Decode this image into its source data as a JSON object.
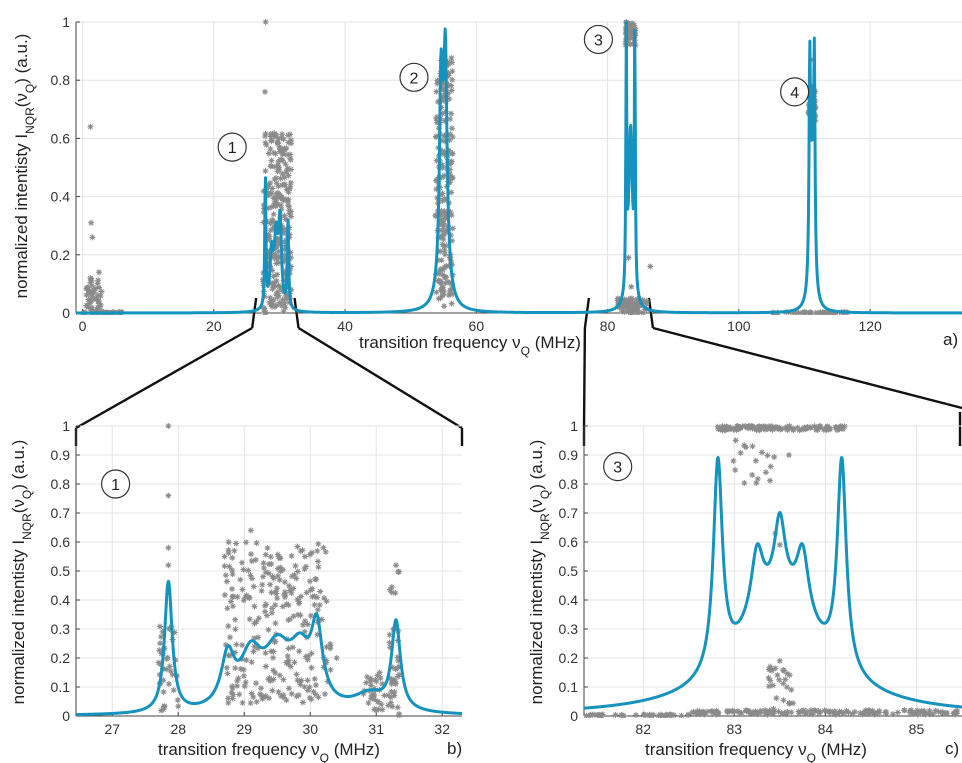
{
  "chart_data": [
    {
      "id": "a",
      "type": "line",
      "panel_label": "a)",
      "xlabel": "transition frequency ν",
      "xlabel_sub": "Q",
      "xlabel_unit": " (MHz)",
      "ylabel": "normalized intentisty I",
      "ylabel_sub1": "NQR",
      "ylabel_mid": "(ν",
      "ylabel_sub2": "Q",
      "ylabel_end": ") (a.u.)",
      "xlim": [
        -1,
        134
      ],
      "ylim": [
        0,
        1
      ],
      "xticks": [
        0,
        20,
        40,
        60,
        80,
        100,
        120
      ],
      "yticks": [
        0,
        0.2,
        0.4,
        0.6,
        0.8,
        1
      ],
      "ytick_labels": [
        "0",
        "0.2",
        "0.4",
        "0.6",
        "0.8",
        "1"
      ],
      "grid": true,
      "series": [
        {
          "kind": "curve",
          "peaks": [
            {
              "x": 27.85,
              "a": 0.46,
              "w": 0.1
            },
            {
              "x": 28.8,
              "a": 0.18,
              "w": 0.3
            },
            {
              "x": 29.5,
              "a": 0.24,
              "w": 0.35
            },
            {
              "x": 30.1,
              "a": 0.28,
              "w": 0.25
            },
            {
              "x": 31.3,
              "a": 0.31,
              "w": 0.12
            },
            {
              "x": 54.6,
              "a": 0.55,
              "w": 0.25
            },
            {
              "x": 55.3,
              "a": 0.52,
              "w": 0.25
            },
            {
              "x": 55.05,
              "a": 0.45,
              "w": 0.6
            },
            {
              "x": 82.85,
              "a": 0.9,
              "w": 0.08
            },
            {
              "x": 84.15,
              "a": 0.9,
              "w": 0.08
            },
            {
              "x": 83.5,
              "a": 0.62,
              "w": 0.35
            },
            {
              "x": 110.8,
              "a": 0.7,
              "w": 0.12
            },
            {
              "x": 111.5,
              "a": 0.7,
              "w": 0.12
            },
            {
              "x": 111.15,
              "a": 0.45,
              "w": 0.35
            }
          ]
        },
        {
          "kind": "scatter",
          "clusters": [
            {
              "x0": 0.5,
              "x1": 3,
              "y0": 0,
              "y1": 0.12,
              "n": 50
            },
            {
              "x0": 27.5,
              "x1": 31.8,
              "y0": 0,
              "y1": 0.62,
              "n": 260
            },
            {
              "x0": 53.8,
              "x1": 56.4,
              "y0": 0.02,
              "y1": 0.88,
              "n": 220
            },
            {
              "x0": 82.7,
              "x1": 84.3,
              "y0": 0.92,
              "y1": 1.0,
              "n": 60
            },
            {
              "x0": 81.5,
              "x1": 86,
              "y0": 0,
              "y1": 0.05,
              "n": 80
            },
            {
              "x0": 110.6,
              "x1": 111.7,
              "y0": 0.66,
              "y1": 0.78,
              "n": 60
            },
            {
              "x0": 0,
              "x1": 6,
              "y0": 0,
              "y1": 0.003,
              "n": 30
            },
            {
              "x0": 105,
              "x1": 117,
              "y0": 0,
              "y1": 0.003,
              "n": 40
            }
          ],
          "points": [
            {
              "x": 27.9,
              "y": 1.0
            },
            {
              "x": 27.8,
              "y": 0.76
            },
            {
              "x": 1.2,
              "y": 0.64
            },
            {
              "x": 1.3,
              "y": 0.31
            },
            {
              "x": 1.5,
              "y": 0.26
            },
            {
              "x": 2.5,
              "y": 0.14
            },
            {
              "x": 111.3,
              "y": 0.87
            },
            {
              "x": 83.2,
              "y": 0.19
            },
            {
              "x": 86.5,
              "y": 0.16
            },
            {
              "x": 83.6,
              "y": 0.09
            }
          ]
        }
      ],
      "annotations": [
        {
          "text": "1",
          "x": 22.8,
          "y": 0.57
        },
        {
          "text": "2",
          "x": 50.5,
          "y": 0.81
        },
        {
          "text": "3",
          "x": 78.6,
          "y": 0.94
        },
        {
          "text": "4",
          "x": 108.5,
          "y": 0.76
        }
      ]
    },
    {
      "id": "b",
      "type": "line",
      "panel_label": "b)",
      "xlabel": "transition frequency ν",
      "xlabel_sub": "Q",
      "xlabel_unit": " (MHz)",
      "ylabel": "normalized intentisty I",
      "ylabel_sub1": "NQR",
      "ylabel_mid": "(ν",
      "ylabel_sub2": "Q",
      "ylabel_end": ") (a.u.)",
      "xlim": [
        26.45,
        32.3
      ],
      "ylim": [
        0,
        1
      ],
      "xticks": [
        27,
        28,
        29,
        30,
        31,
        32
      ],
      "yticks": [
        0,
        0.1,
        0.2,
        0.3,
        0.4,
        0.5,
        0.6,
        0.7,
        0.8,
        0.9,
        1
      ],
      "ytick_labels": [
        "0",
        "0.1",
        "0.2",
        "0.3",
        "0.4",
        "0.5",
        "0.6",
        "0.7",
        "0.8",
        "0.9",
        "1"
      ],
      "grid": true,
      "series": [
        {
          "kind": "curve",
          "peaks": [
            {
              "x": 27.85,
              "a": 0.45,
              "w": 0.07
            },
            {
              "x": 28.75,
              "a": 0.17,
              "w": 0.12
            },
            {
              "x": 29.1,
              "a": 0.17,
              "w": 0.2
            },
            {
              "x": 29.5,
              "a": 0.19,
              "w": 0.25
            },
            {
              "x": 29.85,
              "a": 0.17,
              "w": 0.2
            },
            {
              "x": 30.1,
              "a": 0.24,
              "w": 0.1
            },
            {
              "x": 30.9,
              "a": 0.06,
              "w": 0.3
            },
            {
              "x": 31.3,
              "a": 0.3,
              "w": 0.08
            }
          ]
        },
        {
          "kind": "scatter",
          "clusters": [
            {
              "x0": 27.7,
              "x1": 28.0,
              "y0": 0.01,
              "y1": 0.32,
              "n": 40
            },
            {
              "x0": 28.7,
              "x1": 30.25,
              "y0": 0.04,
              "y1": 0.6,
              "n": 260
            },
            {
              "x0": 30.2,
              "x1": 30.35,
              "y0": 0.1,
              "y1": 0.25,
              "n": 8
            },
            {
              "x0": 30.8,
              "x1": 31.3,
              "y0": 0.02,
              "y1": 0.15,
              "n": 40
            },
            {
              "x0": 31.2,
              "x1": 31.35,
              "y0": 0.0,
              "y1": 0.5,
              "n": 30
            }
          ],
          "points": [
            {
              "x": 27.85,
              "y": 1.0
            },
            {
              "x": 27.85,
              "y": 0.76
            },
            {
              "x": 27.85,
              "y": 0.58
            },
            {
              "x": 27.85,
              "y": 0.52
            },
            {
              "x": 27.85,
              "y": 0.44
            },
            {
              "x": 29.1,
              "y": 0.64
            },
            {
              "x": 30.2,
              "y": 0.58
            },
            {
              "x": 31.3,
              "y": 0.52
            },
            {
              "x": 30.4,
              "y": 0.2
            },
            {
              "x": 28.85,
              "y": 0.57
            }
          ]
        }
      ],
      "annotations": [
        {
          "text": "1",
          "x": 27.05,
          "y": 0.8
        }
      ]
    },
    {
      "id": "c",
      "type": "line",
      "panel_label": "c)",
      "xlabel": "transition frequency ν",
      "xlabel_sub": "Q",
      "xlabel_unit": " (MHz)",
      "ylabel": "normalized intentisty I",
      "ylabel_sub1": "NQR",
      "ylabel_mid": "(ν",
      "ylabel_sub2": "Q",
      "ylabel_end": ") (a.u.)",
      "xlim": [
        81.35,
        85.5
      ],
      "ylim": [
        0,
        1
      ],
      "xticks": [
        82,
        83,
        84,
        85
      ],
      "yticks": [
        0,
        0.1,
        0.2,
        0.3,
        0.4,
        0.5,
        0.6,
        0.7,
        0.8,
        0.9,
        1
      ],
      "ytick_labels": [
        "0",
        "0.1",
        "0.2",
        "0.3",
        "0.4",
        "0.5",
        "0.6",
        "0.7",
        "0.8",
        "0.9",
        "1"
      ],
      "grid": true,
      "series": [
        {
          "kind": "curve",
          "peaks": [
            {
              "x": 82.82,
              "a": 0.72,
              "w": 0.06
            },
            {
              "x": 84.18,
              "a": 0.72,
              "w": 0.06
            },
            {
              "x": 83.25,
              "a": 0.22,
              "w": 0.08
            },
            {
              "x": 83.5,
              "a": 0.25,
              "w": 0.07
            },
            {
              "x": 83.75,
              "a": 0.22,
              "w": 0.08
            },
            {
              "x": 83.5,
              "a": 0.4,
              "w": 0.55
            }
          ]
        },
        {
          "kind": "scatter",
          "clusters": [
            {
              "x0": 82.8,
              "x1": 84.25,
              "y0": 0.985,
              "y1": 1.0,
              "n": 120
            },
            {
              "x0": 82.95,
              "x1": 83.45,
              "y0": 0.8,
              "y1": 0.97,
              "n": 16
            },
            {
              "x0": 82.5,
              "x1": 85.5,
              "y0": 0.005,
              "y1": 0.02,
              "n": 150
            },
            {
              "x0": 81.35,
              "x1": 82.5,
              "y0": 0,
              "y1": 0.005,
              "n": 40
            },
            {
              "x0": 83.35,
              "x1": 83.65,
              "y0": 0.02,
              "y1": 0.18,
              "n": 25
            }
          ],
          "points": [
            {
              "x": 83.5,
              "y": 0.59
            },
            {
              "x": 83.45,
              "y": 0.63
            },
            {
              "x": 83.6,
              "y": 0.9
            },
            {
              "x": 83.5,
              "y": 0.19
            },
            {
              "x": 83.4,
              "y": 0.86
            },
            {
              "x": 83.2,
              "y": 0.93
            }
          ]
        }
      ],
      "annotations": [
        {
          "text": "3",
          "x": 81.72,
          "y": 0.86
        }
      ]
    }
  ]
}
